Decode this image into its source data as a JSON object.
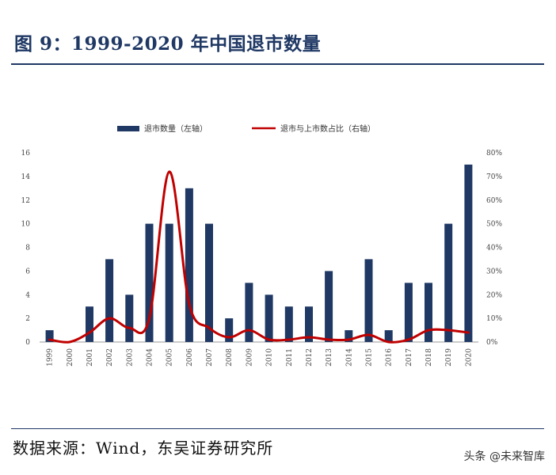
{
  "figure": {
    "title": "图 9：1999-2020 年中国退市数量",
    "source": "数据来源：Wind，东吴证券研究所",
    "watermark": "头条 @未来智库"
  },
  "colors": {
    "bar": "#1f3864",
    "line": "#c00000",
    "title": "#1f3864"
  },
  "chart_data": {
    "type": "bar",
    "categories": [
      "1999",
      "2000",
      "2001",
      "2002",
      "2003",
      "2004",
      "2005",
      "2006",
      "2007",
      "2008",
      "2009",
      "2010",
      "2011",
      "2012",
      "2013",
      "2014",
      "2015",
      "2016",
      "2017",
      "2018",
      "2019",
      "2020"
    ],
    "series": [
      {
        "name": "退市数量（左轴）",
        "type": "bar",
        "axis": "left",
        "values": [
          1,
          0,
          3,
          7,
          4,
          10,
          10,
          13,
          10,
          2,
          5,
          4,
          3,
          3,
          6,
          1,
          7,
          1,
          5,
          5,
          10,
          15
        ]
      },
      {
        "name": "退市与上市数占比（右轴）",
        "type": "line",
        "axis": "right",
        "values": [
          1,
          0,
          4,
          10,
          6,
          10,
          72,
          16,
          6,
          2,
          5,
          1,
          1,
          2,
          1,
          1,
          3,
          0,
          1,
          5,
          5,
          4
        ]
      }
    ],
    "y_left": {
      "min": 0,
      "max": 16,
      "step": 2,
      "tick_labels": [
        "0",
        "2",
        "4",
        "6",
        "8",
        "10",
        "12",
        "14",
        "16"
      ]
    },
    "y_right": {
      "min": 0,
      "max": 80,
      "step": 10,
      "tick_labels": [
        "0%",
        "10%",
        "20%",
        "30%",
        "40%",
        "50%",
        "60%",
        "70%",
        "80%"
      ]
    },
    "grid": false,
    "legend_position": "top-center"
  }
}
